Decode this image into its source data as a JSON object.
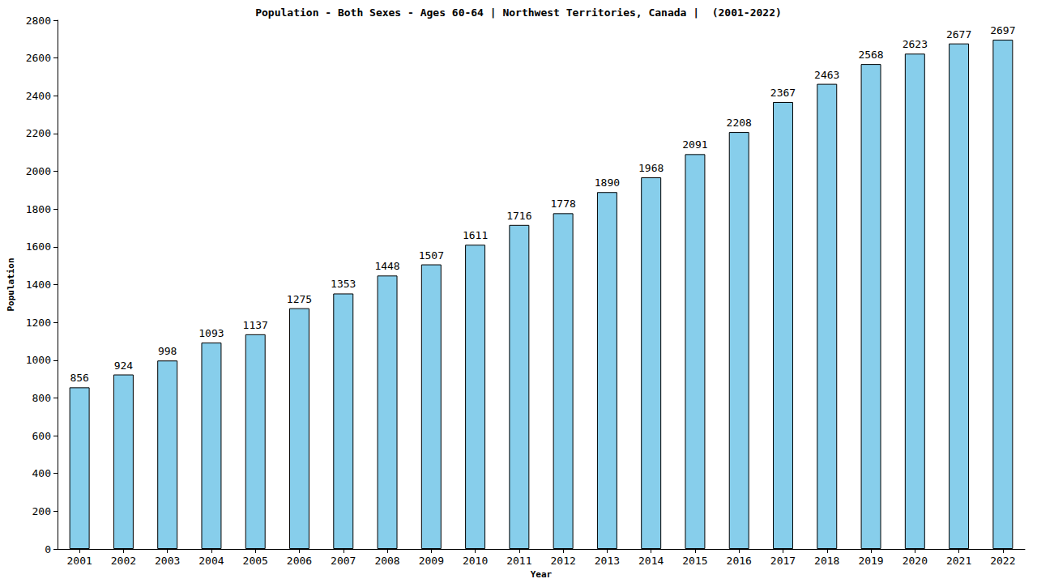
{
  "chart_data": {
    "type": "bar",
    "title": "Population - Both Sexes - Ages 60-64 | Northwest Territories, Canada |  (2001-2022)",
    "x_label": "Year",
    "y_label": "Population",
    "categories": [
      "2001",
      "2002",
      "2003",
      "2004",
      "2005",
      "2006",
      "2007",
      "2008",
      "2009",
      "2010",
      "2011",
      "2012",
      "2013",
      "2014",
      "2015",
      "2016",
      "2017",
      "2018",
      "2019",
      "2020",
      "2021",
      "2022"
    ],
    "values": [
      856,
      924,
      998,
      1093,
      1137,
      1275,
      1353,
      1448,
      1507,
      1611,
      1716,
      1778,
      1890,
      1968,
      2091,
      2208,
      2367,
      2463,
      2568,
      2623,
      2677,
      2697
    ],
    "color": "#87ceeb",
    "ylim": [
      0,
      2800
    ],
    "yticks": [
      0,
      200,
      400,
      600,
      800,
      1000,
      1200,
      1400,
      1600,
      1800,
      2000,
      2200,
      2400,
      2600,
      2800
    ],
    "grid": false,
    "data_labels": true
  }
}
